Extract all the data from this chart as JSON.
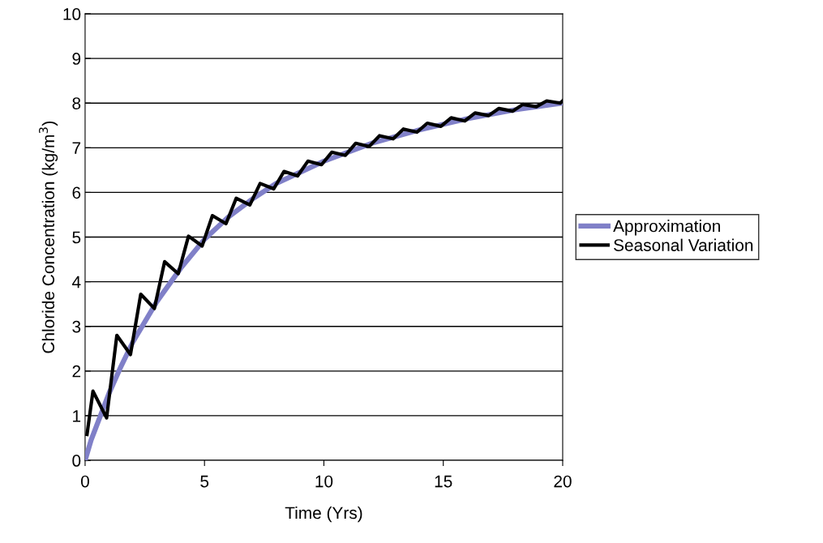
{
  "chart_data": {
    "type": "line",
    "xlabel": "Time (Yrs)",
    "ylabel": "Chloride Concentration (kg/m$^{3}$)",
    "xlim": [
      0,
      20
    ],
    "xticks": [
      0,
      5,
      10,
      15,
      20
    ],
    "ylim": [
      0,
      10
    ],
    "yticks": [
      0,
      1,
      2,
      3,
      4,
      5,
      6,
      7,
      8,
      9,
      10
    ],
    "grid": "y",
    "legend": "right",
    "marker": "none",
    "line_style": "solid",
    "series": [
      {
        "name": "Approximation",
        "color": "#8080c8",
        "x": [
          0,
          0.25,
          0.5,
          1,
          1.5,
          2,
          3,
          4,
          5,
          6,
          7,
          8,
          10,
          12,
          14,
          16,
          18,
          20
        ],
        "values": [
          0,
          0.45,
          0.8,
          1.5,
          2.1,
          2.65,
          3.55,
          4.3,
          4.95,
          5.45,
          5.85,
          6.2,
          6.7,
          7.1,
          7.4,
          7.65,
          7.85,
          8.0
        ]
      },
      {
        "name": "Seasonal Variation",
        "color": "#000000",
        "x": [
          0.08,
          0.33,
          0.9,
          1.33,
          1.9,
          2.33,
          2.9,
          3.33,
          3.9,
          4.33,
          4.9,
          5.33,
          5.9,
          6.33,
          6.9,
          7.33,
          7.9,
          8.33,
          8.9,
          9.33,
          9.9,
          10.33,
          10.9,
          11.33,
          11.9,
          12.33,
          12.9,
          13.33,
          13.9,
          14.33,
          14.9,
          15.33,
          15.9,
          16.33,
          16.9,
          17.33,
          17.9,
          18.33,
          18.9,
          19.33,
          19.9,
          20
        ],
        "values": [
          0.58,
          1.55,
          0.95,
          2.8,
          2.37,
          3.72,
          3.4,
          4.45,
          4.18,
          5.02,
          4.8,
          5.48,
          5.3,
          5.87,
          5.72,
          6.2,
          6.08,
          6.47,
          6.37,
          6.7,
          6.62,
          6.9,
          6.83,
          7.1,
          7.03,
          7.27,
          7.2,
          7.42,
          7.35,
          7.55,
          7.48,
          7.67,
          7.6,
          7.78,
          7.72,
          7.88,
          7.82,
          7.97,
          7.92,
          8.05,
          8.0,
          8.05
        ]
      }
    ]
  }
}
